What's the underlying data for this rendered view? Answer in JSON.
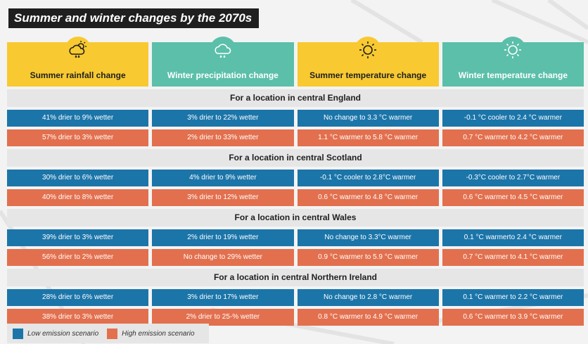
{
  "title": "Summer and winter changes by the 2070s",
  "columns": [
    {
      "label": "Summer rainfall change",
      "icon": "sun-rain-cloud-icon"
    },
    {
      "label": "Winter precipitation change",
      "icon": "rain-cloud-icon"
    },
    {
      "label": "Summer temperature change",
      "icon": "sun-icon"
    },
    {
      "label": "Winter temperature change",
      "icon": "sun-icon"
    }
  ],
  "sections": [
    {
      "title": "For a location in central England",
      "low": [
        "41% drier to 9% wetter",
        "3% drier to 22% wetter",
        "No change to 3.3 °C warmer",
        "-0.1 °C cooler to 2.4 °C warmer"
      ],
      "high": [
        "57% drier to 3% wetter",
        "2% drier to 33% wetter",
        "1.1 °C warmer to 5.8 °C warmer",
        "0.7 °C warmer to 4.2 °C warmer"
      ]
    },
    {
      "title": "For a location in central Scotland",
      "low": [
        "30% drier to 6% wetter",
        "4% drier to 9% wetter",
        "-0.1 °C cooler to 2.8°C warmer",
        "-0.3°C cooler to 2.7°C warmer"
      ],
      "high": [
        "40% drier to 8% wetter",
        "3% drier to 12% wetter",
        "0.6 °C warmer to 4.8 °C warmer",
        "0.6 °C warmer to 4.5 °C warmer"
      ]
    },
    {
      "title": "For a location in central Wales",
      "low": [
        "39% drier to 3% wetter",
        "2% drier to 19% wetter",
        "No change to 3.3°C warmer",
        "0.1 °C warmerto 2.4 °C warmer"
      ],
      "high": [
        "56% drier to 2% wetter",
        "No change to 29% wetter",
        "0.9 °C warmer to 5.9 °C warmer",
        "0.7 °C warmer to 4.1 °C warmer"
      ]
    },
    {
      "title": "For a location in central Northern Ireland",
      "low": [
        "28% drier to 6% wetter",
        "3% drier to 17% wetter",
        "No change to 2.8 °C warmer",
        "0.1 °C warmer to 2.2 °C warmer"
      ],
      "high": [
        "38% drier to 3% wetter",
        "2% drier to 25-% wetter",
        "0.8 °C warmer to 4.9 °C warmer",
        "0.6 °C warmer to 3.9 °C warmer"
      ]
    }
  ],
  "legend": {
    "low_label": "Low emission scenario",
    "high_label": "High emission scenario"
  },
  "colors": {
    "yellow": "#f8c930",
    "teal": "#5bbfaa",
    "low": "#1b75a9",
    "high": "#e2704e"
  }
}
